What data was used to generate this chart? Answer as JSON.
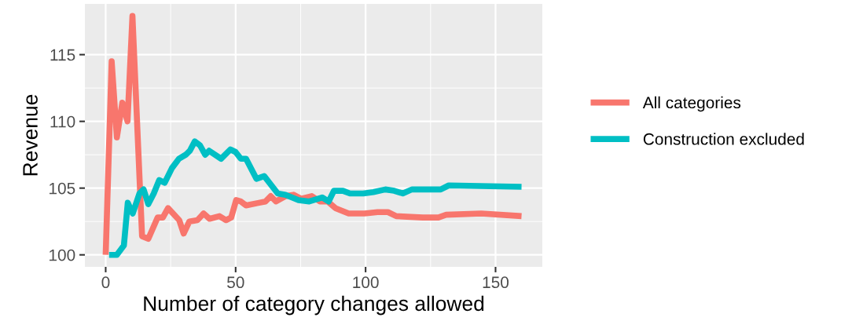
{
  "chart_data": {
    "type": "line",
    "xlabel": "Number of category changes allowed",
    "ylabel": "Revenue",
    "xlim": [
      -8,
      168
    ],
    "xticks": [
      0,
      50,
      100,
      150
    ],
    "ylim": [
      99.1,
      118.8
    ],
    "yticks": [
      100,
      105,
      110,
      115
    ],
    "grid": true,
    "legend": "right",
    "marker": "none",
    "line_style": "solid",
    "series": [
      {
        "name": "All categories",
        "color": "#f8766d",
        "x": [
          0,
          2.3,
          4.3,
          6.4,
          8.4,
          10.3,
          14,
          16.4,
          20,
          22,
          24,
          28.3,
          30,
          32.2,
          35.3,
          37.7,
          40,
          43.8,
          46.3,
          48.3,
          50.2,
          52,
          54,
          59,
          61.5,
          63.5,
          65.5,
          69.2,
          72.3,
          75.3,
          79.3,
          82.4,
          85.4,
          88.4,
          93.5,
          99.6,
          104.6,
          108.6,
          111.8,
          122,
          128,
          131,
          144.5,
          160
        ],
        "values": [
          100,
          114.5,
          108.8,
          111.4,
          110,
          117.9,
          101.4,
          101.2,
          102.8,
          102.8,
          103.5,
          102.6,
          101.6,
          102.5,
          102.6,
          103.1,
          102.7,
          102.9,
          102.6,
          102.8,
          104.1,
          104.0,
          103.7,
          103.9,
          104.0,
          104.4,
          104.0,
          104.4,
          104.5,
          104.2,
          104.4,
          104.0,
          104.0,
          103.5,
          103.1,
          103.1,
          103.2,
          103.2,
          102.9,
          102.8,
          102.8,
          103.0,
          103.1,
          102.9
        ]
      },
      {
        "name": "Construction excluded",
        "color": "#00bfc4",
        "x": [
          1.3,
          4.3,
          7,
          8.5,
          10.4,
          13,
          14.6,
          16.4,
          18.5,
          20.6,
          22.7,
          25.5,
          28.2,
          30.8,
          32.4,
          34.3,
          36.3,
          38.3,
          39.8,
          44.4,
          48,
          50,
          52,
          54,
          58,
          61,
          66.2,
          69.2,
          74.2,
          78.3,
          83.3,
          85.8,
          87.8,
          91.3,
          94,
          99.1,
          103,
          107.6,
          111,
          114.3,
          117.8,
          128.9,
          132,
          160
        ],
        "values": [
          100,
          100,
          100.7,
          103.9,
          103.1,
          104.6,
          104.9,
          103.8,
          104.6,
          105.6,
          105.4,
          106.5,
          107.2,
          107.5,
          107.8,
          108.5,
          108.2,
          107.5,
          107.8,
          107.2,
          107.9,
          107.7,
          107.2,
          107.2,
          105.7,
          105.9,
          104.6,
          104.5,
          104.1,
          104.0,
          104.3,
          104.0,
          104.8,
          104.8,
          104.6,
          104.6,
          104.7,
          104.9,
          104.8,
          104.6,
          104.9,
          104.9,
          105.2,
          105.1
        ]
      }
    ]
  }
}
